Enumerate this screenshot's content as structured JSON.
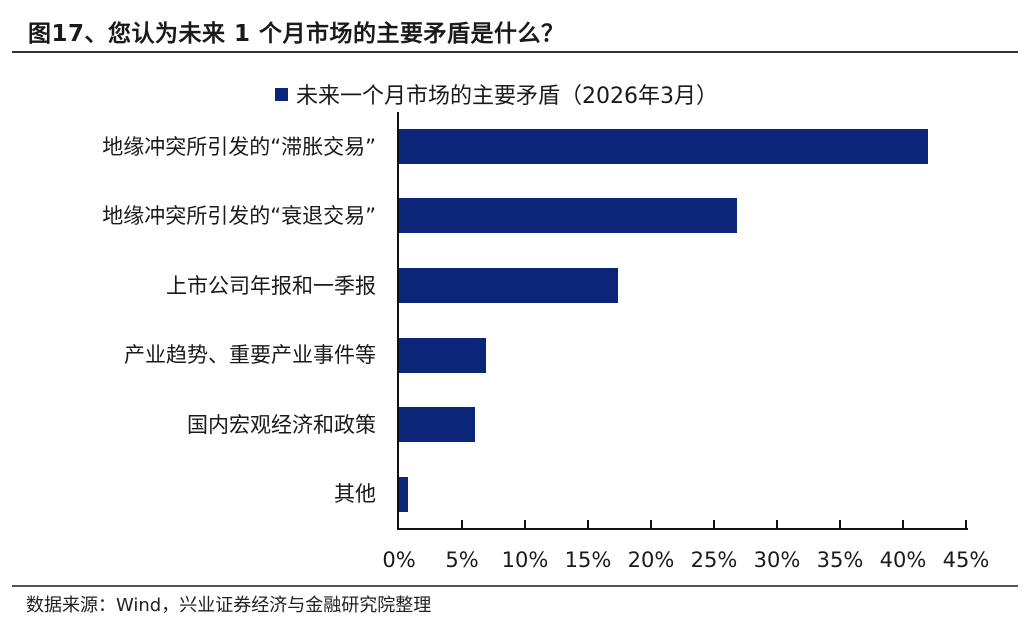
{
  "figure": {
    "title": "图17、您认为未来 1 个月市场的主要矛盾是什么？",
    "source": "数据来源：Wind，兴业证券经济与金融研究院整理",
    "bar_color": "#0b2679"
  },
  "chart_data": {
    "type": "bar",
    "orientation": "horizontal",
    "title": "图17、您认为未来 1 个月市场的主要矛盾是什么？",
    "legend": [
      "未来一个月市场的主要矛盾（2026年3月）"
    ],
    "legend_position": "top",
    "categories": [
      "地缘冲突所引发的“滞胀交易”",
      "地缘冲突所引发的“衰退交易”",
      "上市公司年报和一季报",
      "产业趋势、重要产业事件等",
      "国内宏观经济和政策",
      "其他"
    ],
    "series": [
      {
        "name": "未来一个月市场的主要矛盾（2026年3月）",
        "values": [
          42.0,
          26.8,
          17.4,
          6.9,
          6.0,
          0.7
        ]
      }
    ],
    "xlabel": "",
    "ylabel": "",
    "xlim": [
      0,
      45
    ],
    "x_ticks": [
      "0%",
      "5%",
      "10%",
      "15%",
      "20%",
      "25%",
      "30%",
      "35%",
      "40%",
      "45%"
    ],
    "grid": false,
    "unit": "%"
  }
}
